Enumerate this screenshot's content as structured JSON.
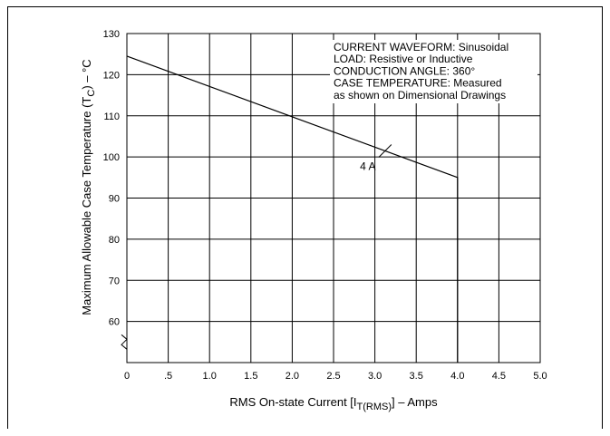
{
  "chart_data": {
    "type": "line",
    "xlabel_main": "RMS On-state Current [I",
    "xlabel_sub": "T(RMS)",
    "xlabel_tail": "] – Amps",
    "ylabel_main": "Maximum Allowable Case Temperature (T",
    "ylabel_sub": "C",
    "ylabel_tail": ") – °C",
    "xlim": [
      0,
      5.0
    ],
    "ylim": [
      50,
      130
    ],
    "x_ticks": [
      {
        "value": 0,
        "label": "0"
      },
      {
        "value": 0.5,
        "label": ".5"
      },
      {
        "value": 1.0,
        "label": "1.0"
      },
      {
        "value": 1.5,
        "label": "1.5"
      },
      {
        "value": 2.0,
        "label": "2.0"
      },
      {
        "value": 2.5,
        "label": "2.5"
      },
      {
        "value": 3.0,
        "label": "3.0"
      },
      {
        "value": 3.5,
        "label": "3.5"
      },
      {
        "value": 4.0,
        "label": "4.0"
      },
      {
        "value": 4.5,
        "label": "4.5"
      },
      {
        "value": 5.0,
        "label": "5.0"
      }
    ],
    "y_ticks": [
      {
        "value": 60,
        "label": "60"
      },
      {
        "value": 70,
        "label": "70"
      },
      {
        "value": 80,
        "label": "80"
      },
      {
        "value": 90,
        "label": "90"
      },
      {
        "value": 100,
        "label": "100"
      },
      {
        "value": 110,
        "label": "110"
      },
      {
        "value": 120,
        "label": "120"
      },
      {
        "value": 130,
        "label": "130"
      }
    ],
    "grid": true,
    "axis_break": true,
    "series": [
      {
        "name": "4 A",
        "x": [
          0,
          4.0,
          4.0
        ],
        "y": [
          124.5,
          95,
          50
        ]
      }
    ],
    "series_label_pointer": {
      "x": 3.2,
      "y": 103
    },
    "annotations": [
      "CURRENT WAVEFORM: Sinusoidal",
      "LOAD: Resistive or Inductive",
      "CONDUCTION ANGLE: 360°",
      "CASE TEMPERATURE: Measured",
      "as shown on Dimensional Drawings"
    ]
  }
}
